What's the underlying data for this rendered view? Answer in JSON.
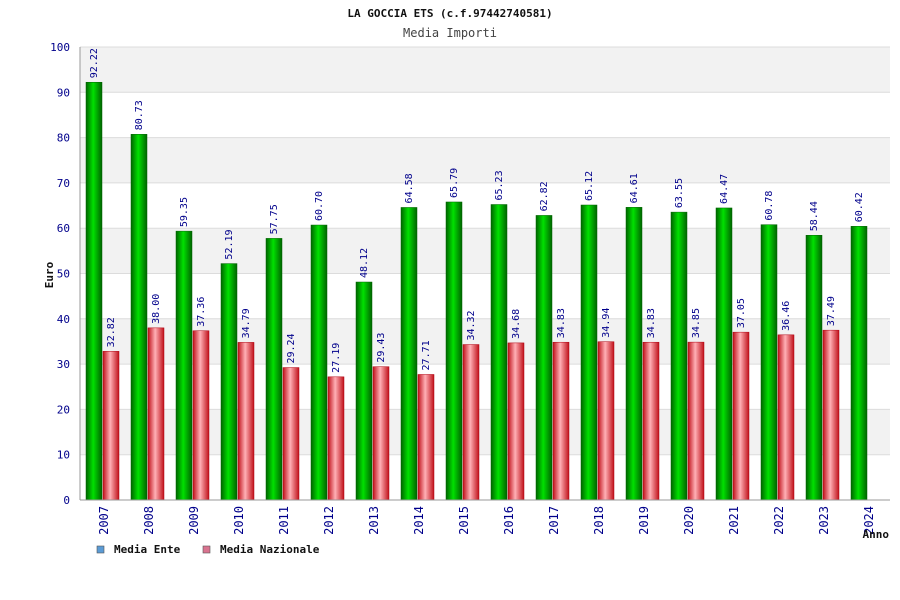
{
  "chart_data": {
    "type": "bar",
    "title": "LA GOCCIA ETS (c.f.97442740581)",
    "subtitle": "Media Importi",
    "xlabel": "Anno",
    "ylabel": "Euro",
    "ylim": [
      0,
      100
    ],
    "yticks": [
      "0",
      "10",
      "20",
      "30",
      "40",
      "50",
      "60",
      "70",
      "80",
      "90",
      "100"
    ],
    "categories": [
      "2007",
      "2008",
      "2009",
      "2010",
      "2011",
      "2012",
      "2013",
      "2014",
      "2015",
      "2016",
      "2017",
      "2018",
      "2019",
      "2020",
      "2021",
      "2022",
      "2023",
      "2024"
    ],
    "series": [
      {
        "name": "Media Ente",
        "color": "#00b000",
        "values": [
          92.22,
          80.73,
          59.35,
          52.19,
          57.75,
          60.7,
          48.12,
          64.58,
          65.79,
          65.23,
          62.82,
          65.12,
          64.61,
          63.55,
          64.47,
          60.78,
          58.44,
          60.42
        ],
        "labels": [
          "92.22",
          "80.73",
          "59.35",
          "52.19",
          "57.75",
          "60.70",
          "48.12",
          "64.58",
          "65.79",
          "65.23",
          "62.82",
          "65.12",
          "64.61",
          "63.55",
          "64.47",
          "60.78",
          "58.44",
          "60.42"
        ]
      },
      {
        "name": "Media Nazionale",
        "color": "#e8202a",
        "values": [
          32.82,
          38.0,
          37.36,
          34.79,
          29.24,
          27.19,
          29.43,
          27.71,
          34.32,
          34.68,
          34.83,
          34.94,
          34.83,
          34.85,
          37.05,
          36.46,
          37.49,
          null
        ],
        "labels": [
          "32.82",
          "38.00",
          "37.36",
          "34.79",
          "29.24",
          "27.19",
          "29.43",
          "27.71",
          "34.32",
          "34.68",
          "34.83",
          "34.94",
          "34.83",
          "34.85",
          "37.05",
          "36.46",
          "37.49",
          null
        ]
      }
    ],
    "legend": {
      "placement": "bottom-left",
      "items": [
        {
          "label": "Media Ente",
          "color": "#5b9bd5"
        },
        {
          "label": "Media Nazionale",
          "color": "#d9738f"
        }
      ]
    },
    "grid": true
  }
}
